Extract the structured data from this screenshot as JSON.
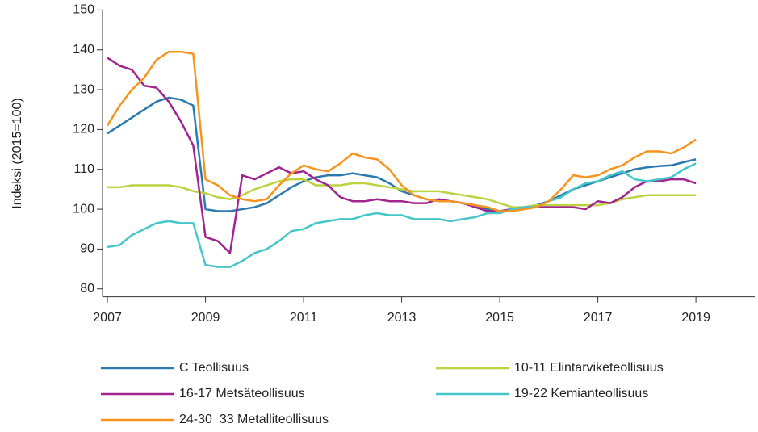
{
  "chart_data": {
    "type": "line",
    "y_label": "Indeksi (2015=100)",
    "x": [
      2007,
      2007.25,
      2007.5,
      2007.75,
      2008,
      2008.25,
      2008.5,
      2008.75,
      2009,
      2009.25,
      2009.5,
      2009.75,
      2010,
      2010.25,
      2010.5,
      2010.75,
      2011,
      2011.25,
      2011.5,
      2011.75,
      2012,
      2012.25,
      2012.5,
      2012.75,
      2013,
      2013.25,
      2013.5,
      2013.75,
      2014,
      2014.25,
      2014.5,
      2014.75,
      2015,
      2015.25,
      2015.5,
      2015.75,
      2016,
      2016.25,
      2016.5,
      2016.75,
      2017,
      2017.25,
      2017.5,
      2017.75,
      2018,
      2018.25,
      2018.5,
      2018.75,
      2019
    ],
    "xlim": [
      2006.9,
      2020.2
    ],
    "xticks": [
      2007,
      2009,
      2011,
      2013,
      2015,
      2017,
      2019
    ],
    "ylim": [
      78,
      150
    ],
    "yticks": [
      80,
      90,
      100,
      110,
      120,
      130,
      140,
      150
    ],
    "series": [
      {
        "name": "C Teollisuus",
        "color": "#2a7ab0",
        "values": [
          119,
          121,
          123,
          125,
          127,
          128,
          127.5,
          126,
          100,
          99.5,
          99.5,
          100,
          100.5,
          101.5,
          103.5,
          105.5,
          107,
          108,
          108.5,
          108.5,
          109,
          108.5,
          108,
          106.5,
          104.5,
          103.5,
          102.5,
          102,
          102,
          101.5,
          101,
          100,
          99.5,
          100,
          100.5,
          101,
          102,
          103.5,
          105,
          106,
          107,
          108,
          109,
          110,
          110.5,
          110.8,
          111,
          111.8,
          112.5
        ]
      },
      {
        "name": "10-11 Elintarviketeollisuus",
        "color": "#bcd340",
        "values": [
          105.5,
          105.5,
          106,
          106,
          106,
          106,
          105.5,
          104.5,
          104,
          103,
          102.5,
          103.5,
          105,
          106,
          107,
          107.5,
          107.5,
          106,
          106,
          106,
          106.5,
          106.5,
          106,
          105.5,
          105,
          104.5,
          104.5,
          104.5,
          104,
          103.5,
          103,
          102.5,
          101.5,
          100.5,
          100.5,
          101,
          101,
          101,
          101,
          101,
          101,
          101.5,
          102.5,
          103,
          103.5,
          103.5,
          103.5,
          103.5,
          103.5
        ]
      },
      {
        "name": "16-17 Metsäteollisuus",
        "color": "#a1248f",
        "values": [
          138,
          136,
          135,
          131,
          130.5,
          127,
          122,
          116,
          93,
          92,
          89,
          108.5,
          107.5,
          109,
          110.5,
          109,
          109.5,
          107.5,
          106,
          103,
          102,
          102,
          102.5,
          102,
          102,
          101.5,
          101.5,
          102.5,
          102,
          101.5,
          100.5,
          99.5,
          99.5,
          100,
          100.5,
          100.5,
          100.5,
          100.5,
          100.5,
          100,
          102,
          101.5,
          103,
          105.5,
          107,
          107,
          107.5,
          107.5,
          106.5
        ]
      },
      {
        "name": "19-22 Kemianteollisuus",
        "color": "#45c6c8",
        "values": [
          90.5,
          91,
          93.5,
          95,
          96.5,
          97,
          96.5,
          96.5,
          86,
          85.5,
          85.5,
          87,
          89,
          90,
          92,
          94.5,
          95,
          96.5,
          97,
          97.5,
          97.5,
          98.5,
          99,
          98.5,
          98.5,
          97.5,
          97.5,
          97.5,
          97,
          97.5,
          98,
          99,
          99,
          100,
          100.5,
          100.5,
          102,
          103,
          105,
          106.5,
          107,
          108.5,
          109.5,
          107.5,
          107,
          107.5,
          108,
          110,
          111.5
        ]
      },
      {
        "name": "24-30  33 Metalliteollisuus",
        "color": "#f7941e",
        "values": [
          121,
          126,
          130,
          133,
          137.5,
          139.5,
          139.5,
          139,
          107.5,
          106,
          103.5,
          102.5,
          102,
          102.5,
          106,
          109,
          111,
          110,
          109.5,
          111.5,
          114,
          113,
          112.5,
          110,
          106,
          103.5,
          102.5,
          102,
          102,
          101.5,
          101,
          100.5,
          99.5,
          99.5,
          100,
          100.5,
          102,
          105,
          108.5,
          108,
          108.5,
          110,
          111,
          113,
          114.5,
          114.5,
          114,
          115.5,
          117.5
        ]
      }
    ]
  }
}
